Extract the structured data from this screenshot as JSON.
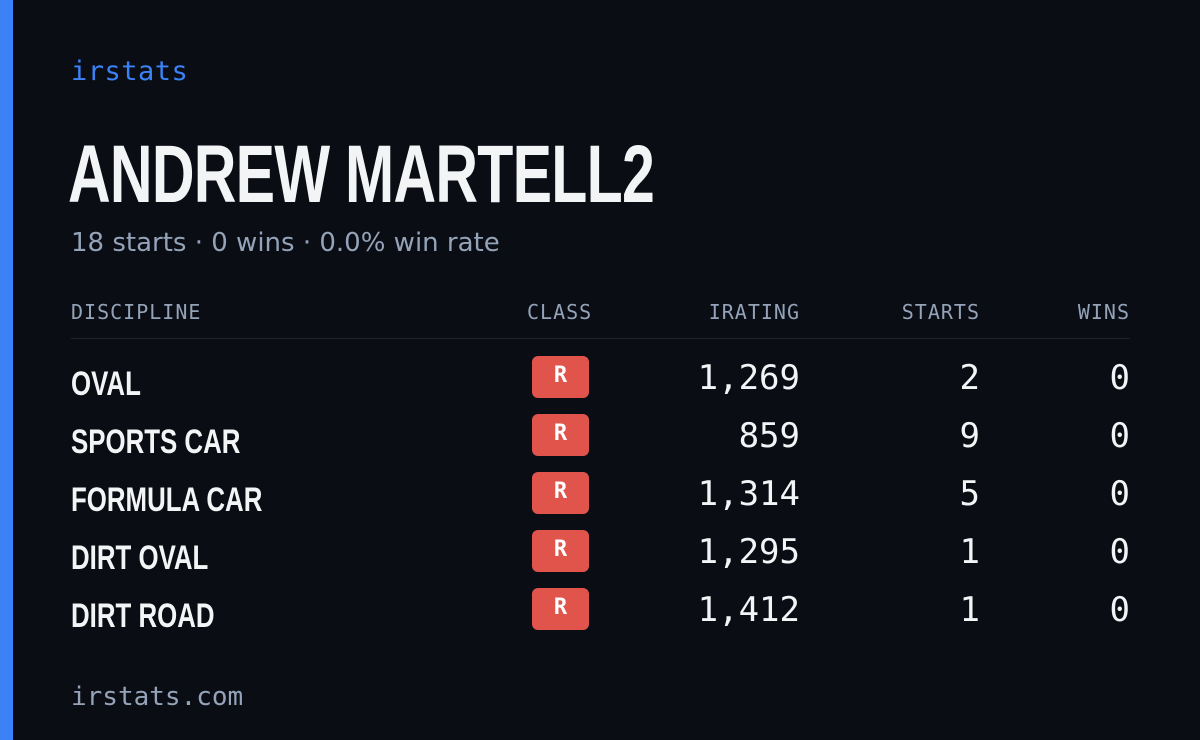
{
  "brand": "irstats",
  "driver": {
    "name": "ANDREW MARTELL2",
    "summary": "18 starts · 0 wins · 0.0% win rate"
  },
  "table": {
    "headers": {
      "discipline": "DISCIPLINE",
      "class": "CLASS",
      "irating": "IRATING",
      "starts": "STARTS",
      "wins": "WINS"
    },
    "rows": [
      {
        "discipline": "OVAL",
        "class": "R",
        "irating": "1,269",
        "starts": "2",
        "wins": "0"
      },
      {
        "discipline": "SPORTS CAR",
        "class": "R",
        "irating": "859",
        "starts": "9",
        "wins": "0"
      },
      {
        "discipline": "FORMULA CAR",
        "class": "R",
        "irating": "1,314",
        "starts": "5",
        "wins": "0"
      },
      {
        "discipline": "DIRT OVAL",
        "class": "R",
        "irating": "1,295",
        "starts": "1",
        "wins": "0"
      },
      {
        "discipline": "DIRT ROAD",
        "class": "R",
        "irating": "1,412",
        "starts": "1",
        "wins": "0"
      }
    ]
  },
  "footer": "irstats.com",
  "colors": {
    "accent": "#3b82f6",
    "background": "#0a0d14",
    "class_badge": "#e0544c"
  }
}
